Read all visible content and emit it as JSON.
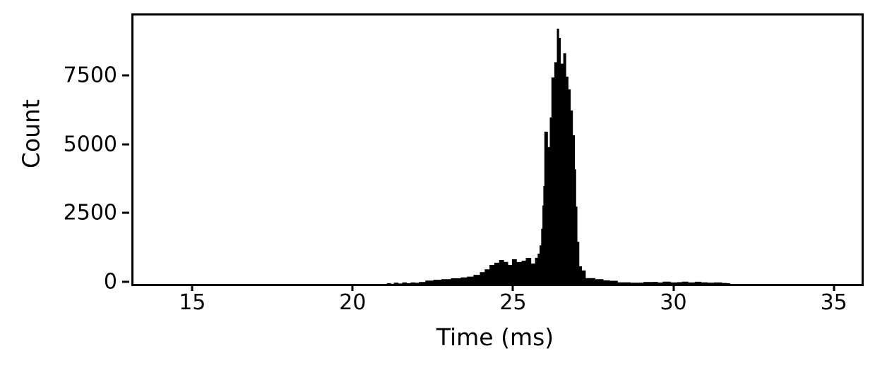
{
  "figure": {
    "background_color": "#ffffff",
    "series_color": "#000000",
    "axis_color": "#000000"
  },
  "chart_data": {
    "type": "bar",
    "subtype": "histogram-step-filled",
    "title": "",
    "xlabel": "Time (ms)",
    "ylabel": "Count",
    "xlim": [
      13.1,
      35.8
    ],
    "ylim": [
      0,
      9750
    ],
    "x_ticks": [
      15,
      20,
      25,
      30,
      35
    ],
    "y_ticks": [
      0,
      2500,
      5000,
      7500
    ],
    "grid": false,
    "legend": "none",
    "bar_color": "#000000",
    "description": "Single filled black histogram of counts vs time; sparse low tail from ~21 ms, shoulder ~700-950 counts between 24.2-25.6 ms, sharp narrow peak cluster between 25.9-27.0 ms with maximum ~9270 at 26.3 ms, low tail to ~31.7 ms",
    "bins": [
      [
        20.9,
        0
      ],
      [
        21.0,
        28
      ],
      [
        21.12,
        8
      ],
      [
        21.22,
        45
      ],
      [
        21.36,
        15
      ],
      [
        21.48,
        55
      ],
      [
        21.62,
        25
      ],
      [
        21.74,
        55
      ],
      [
        21.88,
        40
      ],
      [
        22.0,
        70
      ],
      [
        22.2,
        120
      ],
      [
        22.45,
        150
      ],
      [
        22.7,
        175
      ],
      [
        23.0,
        205
      ],
      [
        23.3,
        235
      ],
      [
        23.5,
        265
      ],
      [
        23.7,
        330
      ],
      [
        23.9,
        430
      ],
      [
        24.05,
        530
      ],
      [
        24.2,
        690
      ],
      [
        24.35,
        770
      ],
      [
        24.5,
        870
      ],
      [
        24.65,
        800
      ],
      [
        24.78,
        690
      ],
      [
        24.9,
        895
      ],
      [
        25.05,
        795
      ],
      [
        25.2,
        845
      ],
      [
        25.33,
        945
      ],
      [
        25.5,
        740
      ],
      [
        25.62,
        950
      ],
      [
        25.7,
        1100
      ],
      [
        25.76,
        1400
      ],
      [
        25.81,
        2000
      ],
      [
        25.85,
        2850
      ],
      [
        25.88,
        3560
      ],
      [
        25.91,
        5530
      ],
      [
        26.02,
        4970
      ],
      [
        26.08,
        6050
      ],
      [
        26.13,
        7500
      ],
      [
        26.22,
        8050
      ],
      [
        26.3,
        9270
      ],
      [
        26.37,
        8930
      ],
      [
        26.42,
        8000
      ],
      [
        26.5,
        8380
      ],
      [
        26.59,
        7530
      ],
      [
        26.66,
        7070
      ],
      [
        26.73,
        6300
      ],
      [
        26.8,
        5400
      ],
      [
        26.86,
        4160
      ],
      [
        26.9,
        2810
      ],
      [
        26.94,
        1530
      ],
      [
        27.0,
        640
      ],
      [
        27.08,
        490
      ],
      [
        27.2,
        210
      ],
      [
        27.5,
        175
      ],
      [
        27.75,
        130
      ],
      [
        27.95,
        115
      ],
      [
        28.2,
        60
      ],
      [
        28.6,
        45
      ],
      [
        29.0,
        70
      ],
      [
        29.3,
        75
      ],
      [
        29.45,
        50
      ],
      [
        29.6,
        85
      ],
      [
        29.85,
        55
      ],
      [
        30.05,
        65
      ],
      [
        30.2,
        85
      ],
      [
        30.4,
        55
      ],
      [
        30.6,
        80
      ],
      [
        30.8,
        60
      ],
      [
        31.0,
        45
      ],
      [
        31.2,
        55
      ],
      [
        31.45,
        35
      ],
      [
        31.6,
        25
      ],
      [
        31.7,
        0
      ]
    ]
  }
}
